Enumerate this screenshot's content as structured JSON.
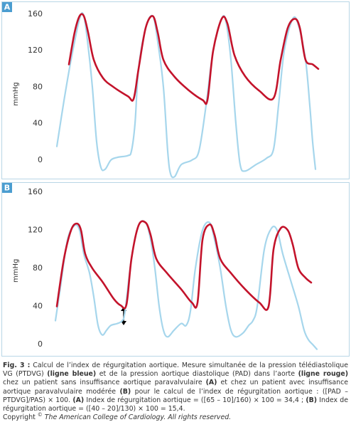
{
  "chart_data": [
    {
      "type": "line",
      "label": "A",
      "ylabel": "mmHg",
      "ylim": [
        -20,
        165
      ],
      "yticks": [
        0,
        40,
        80,
        120,
        160
      ],
      "xlim": [
        0,
        380
      ],
      "series": [
        {
          "color": "#a6d6ec",
          "x": [
            5,
            15,
            25,
            37,
            43,
            49,
            55,
            61,
            67,
            73,
            81,
            90,
            105,
            110,
            115,
            120,
            130,
            140,
            147,
            155,
            161,
            165,
            171,
            180,
            195,
            205,
            215,
            225,
            237,
            243,
            250,
            257,
            263,
            270,
            285,
            300,
            310,
            317,
            325,
            337,
            345,
            355,
            361,
            365,
            369
          ],
          "values": [
            15,
            65,
            110,
            155,
            158,
            125,
            80,
            20,
            -8,
            -10,
            0,
            3,
            5,
            10,
            40,
            100,
            145,
            158,
            130,
            80,
            10,
            -15,
            -18,
            -5,
            0,
            10,
            60,
            120,
            155,
            152,
            110,
            40,
            -5,
            -12,
            -5,
            2,
            12,
            60,
            120,
            155,
            148,
            110,
            60,
            20,
            -10
          ]
        },
        {
          "color": "#c3132b",
          "x": [
            22,
            30,
            37,
            43,
            49,
            57,
            70,
            85,
            105,
            113,
            120,
            130,
            140,
            147,
            155,
            170,
            190,
            210,
            217,
            225,
            237,
            245,
            255,
            270,
            290,
            310,
            320,
            330,
            340,
            347,
            355,
            365,
            373
          ],
          "values": [
            105,
            140,
            158,
            158,
            140,
            110,
            90,
            80,
            70,
            67,
            100,
            145,
            158,
            140,
            110,
            92,
            77,
            66,
            66,
            120,
            155,
            150,
            115,
            92,
            76,
            68,
            110,
            145,
            155,
            145,
            110,
            105,
            100
          ]
        }
      ]
    },
    {
      "type": "line",
      "label": "B",
      "ylabel": "mmHg",
      "ylim": [
        -10,
        165
      ],
      "yticks": [
        0,
        40,
        80,
        120,
        160
      ],
      "xlim": [
        0,
        380
      ],
      "series": [
        {
          "color": "#a6d6ec",
          "x": [
            3,
            10,
            20,
            30,
            37,
            43,
            51,
            57,
            63,
            69,
            75,
            81,
            90,
            97,
            101,
            110,
            120,
            130,
            137,
            143,
            149,
            155,
            161,
            170,
            180,
            187,
            193,
            200,
            210,
            220,
            227,
            235,
            243,
            250,
            257,
            267,
            275,
            281,
            287,
            297,
            307,
            315,
            323,
            335,
            345,
            353,
            359,
            365,
            371
          ],
          "values": [
            25,
            60,
            110,
            125,
            120,
            95,
            75,
            50,
            20,
            10,
            15,
            20,
            22,
            25,
            35,
            90,
            125,
            128,
            110,
            80,
            40,
            15,
            8,
            15,
            22,
            20,
            35,
            80,
            120,
            128,
            110,
            80,
            40,
            15,
            8,
            12,
            20,
            25,
            40,
            100,
            122,
            120,
            95,
            65,
            40,
            15,
            5,
            0,
            -5
          ]
        },
        {
          "color": "#c3132b",
          "x": [
            5,
            15,
            25,
            33,
            39,
            45,
            55,
            70,
            85,
            95,
            103,
            110,
            120,
            130,
            137,
            145,
            160,
            180,
            195,
            203,
            210,
            220,
            227,
            235,
            250,
            270,
            290,
            303,
            310,
            320,
            330,
            337,
            345,
            355,
            363
          ],
          "values": [
            40,
            90,
            120,
            127,
            120,
            95,
            80,
            65,
            48,
            41,
            42,
            90,
            125,
            128,
            115,
            90,
            75,
            58,
            44,
            44,
            110,
            126,
            115,
            90,
            75,
            58,
            44,
            40,
            100,
            122,
            120,
            105,
            80,
            70,
            65
          ]
        }
      ]
    }
  ],
  "caption": {
    "runs": [
      "Fig. 3 :",
      " Calcul de l’index de régurgitation aortique. Mesure simultanée de la pression télédiastolique VG (PTDVG) ",
      "(ligne bleue)",
      " et de la pression aortique diastolique (PAD) dans l’aorte ",
      "(ligne rouge)",
      " chez un patient sans insuffisance aortique paravalvulaire ",
      "(A)",
      " et chez un patient avec insuffisance aortique paravalvulaire modérée ",
      "(B)",
      " pour le calcul de l’index de régurgitation aortique : ([PAD – PTDVG]/PAS) × 100. ",
      "(A)",
      " Index de régurgitation aortique = ([65 – 10]/160) × 100 = 34,4 ; ",
      "(B)",
      " Index de régurgitation aortique = ([40 – 20]/130) × 100 = 15,4."
    ],
    "copyright": "Copyright ",
    "symbol": "©",
    "holder": " The American College of Cardiology. All rights reserved."
  }
}
